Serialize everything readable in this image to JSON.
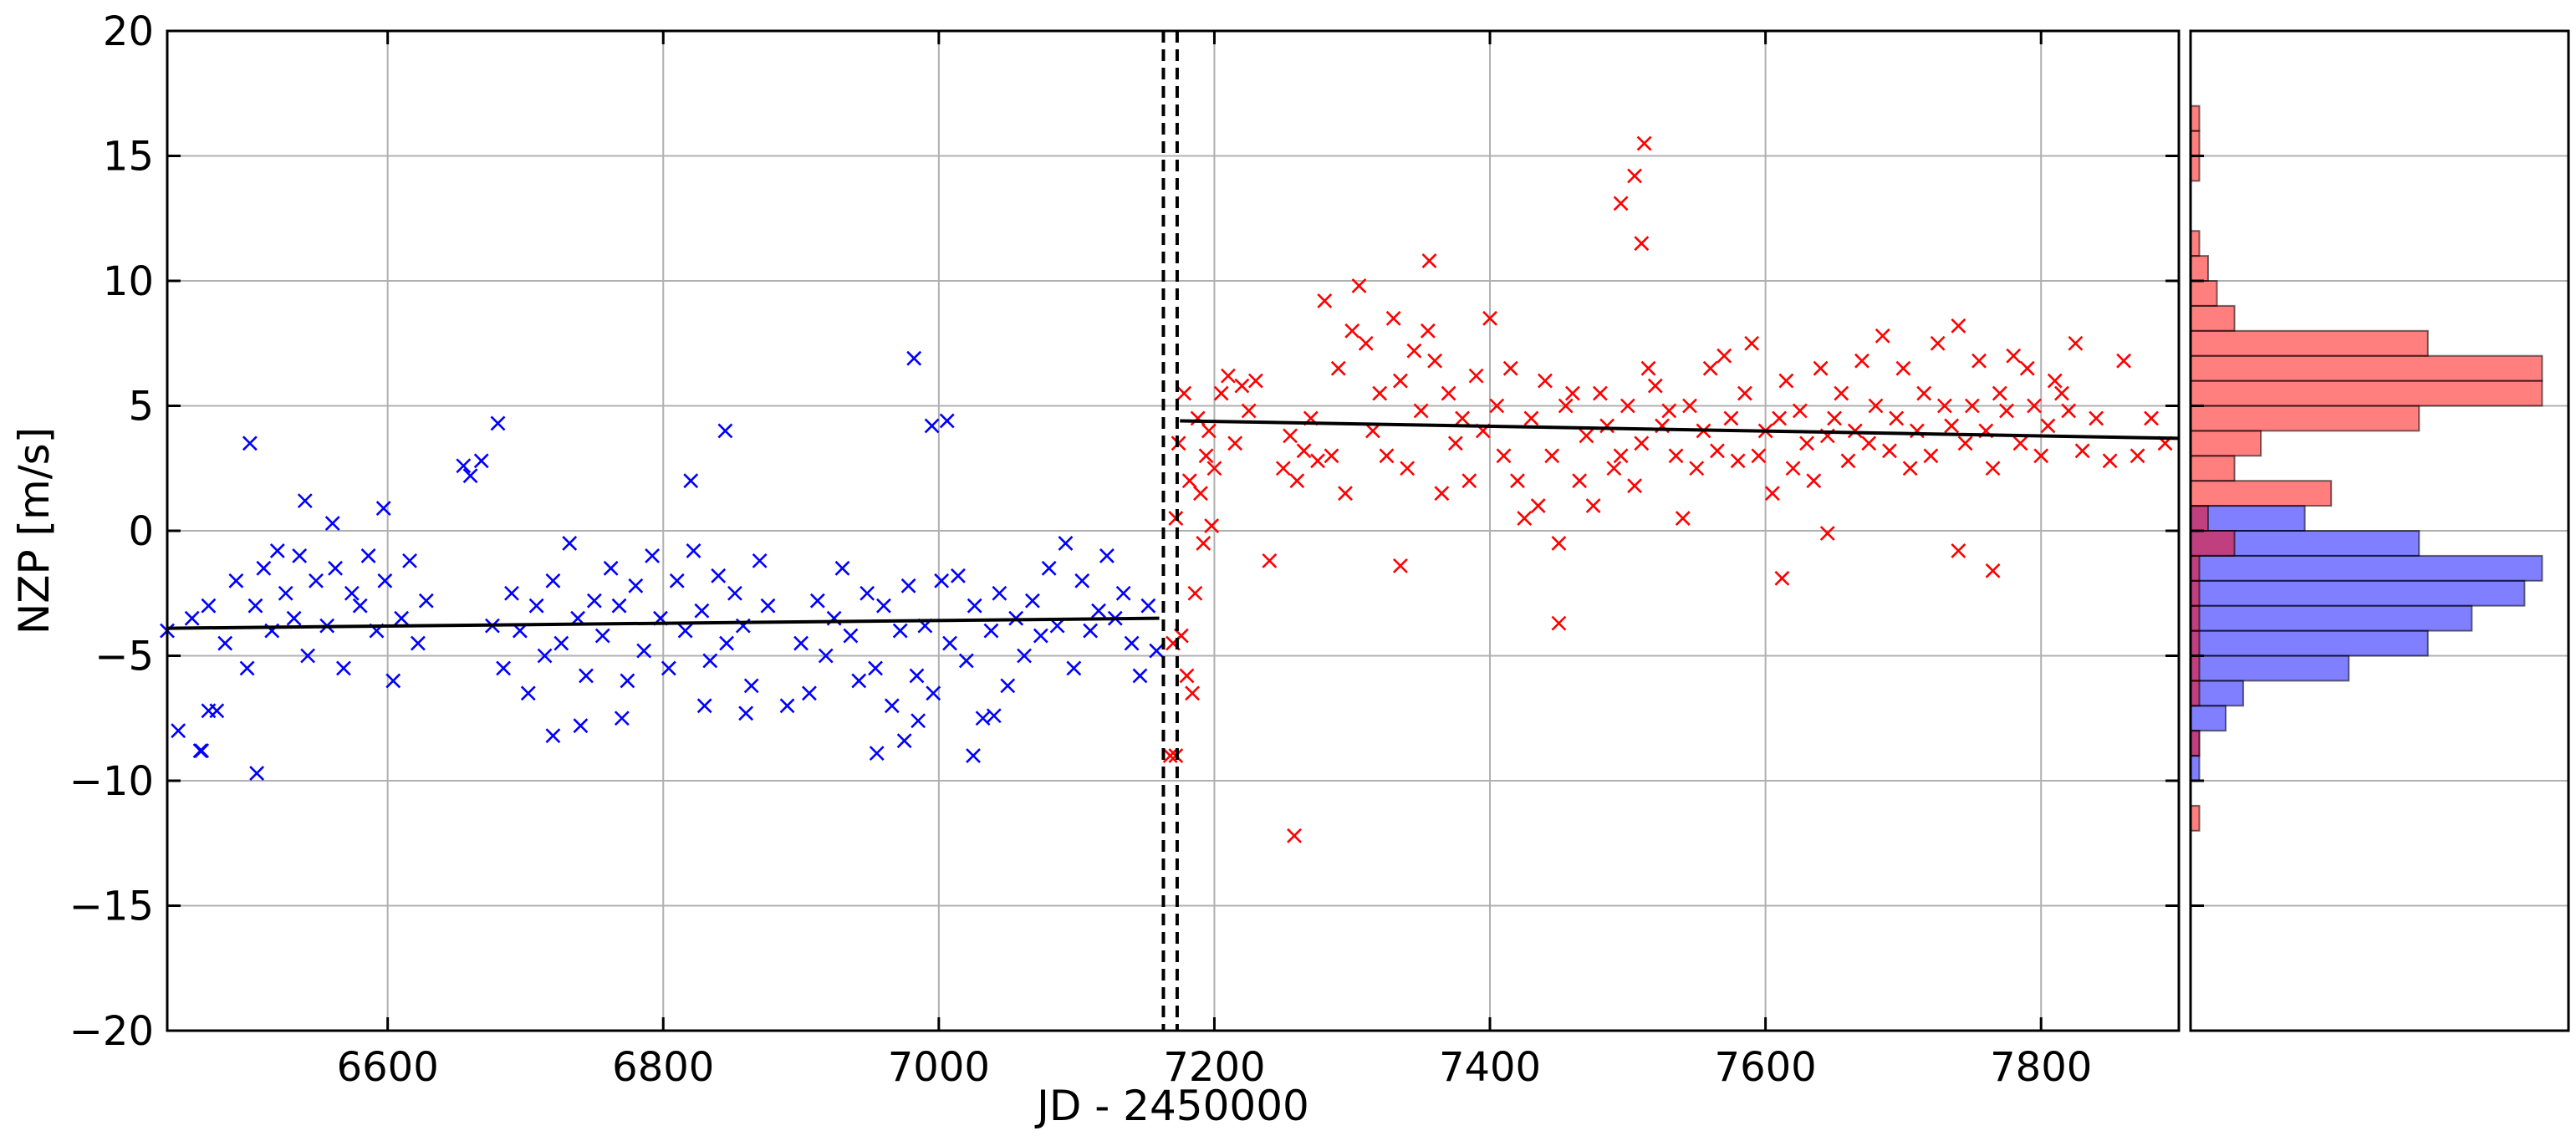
{
  "chart_data": [
    {
      "type": "scatter",
      "xlabel": "JD - 2450000",
      "ylabel": "NZP [m/s]",
      "xlim": [
        6440,
        7900
      ],
      "ylim": [
        -20,
        20
      ],
      "xticks": [
        6600,
        6800,
        7000,
        7200,
        7400,
        7600,
        7800
      ],
      "yticks": [
        -20,
        -15,
        -10,
        -5,
        0,
        5,
        10,
        15,
        20
      ],
      "xtick_labels": [
        "6600",
        "6800",
        "7000",
        "7200",
        "7400",
        "7600",
        "7800"
      ],
      "ytick_labels": [
        "−20",
        "−15",
        "−10",
        "−5",
        "0",
        "5",
        "10",
        "15",
        "20"
      ],
      "grid": true,
      "marker": "x",
      "vertical_lines": [
        7163,
        7173
      ],
      "series": [
        {
          "color": "#0000ff",
          "x": [
            6440,
            6448,
            6458,
            6464,
            6470,
            6476,
            6482,
            6490,
            6498,
            6504,
            6510,
            6516,
            6520,
            6526,
            6532,
            6536,
            6542,
            6548,
            6556,
            6562,
            6568,
            6574,
            6580,
            6586,
            6592,
            6598,
            6604,
            6610,
            6616,
            6622,
            6628,
            6500,
            6505,
            6540,
            6560,
            6655,
            6660,
            6668,
            6676,
            6684,
            6690,
            6696,
            6702,
            6708,
            6714,
            6720,
            6726,
            6732,
            6738,
            6744,
            6750,
            6756,
            6762,
            6768,
            6774,
            6780,
            6786,
            6792,
            6798,
            6804,
            6810,
            6816,
            6822,
            6828,
            6834,
            6840,
            6846,
            6852,
            6858,
            6864,
            6870,
            6876,
            6900,
            6906,
            6912,
            6918,
            6924,
            6930,
            6936,
            6942,
            6948,
            6954,
            6960,
            6966,
            6972,
            6978,
            6984,
            6990,
            6996,
            7002,
            7008,
            7014,
            7020,
            7026,
            7032,
            7038,
            7044,
            7050,
            7056,
            7062,
            7068,
            7074,
            7080,
            7086,
            7092,
            7098,
            7104,
            7110,
            7116,
            7122,
            7128,
            7134,
            7140,
            7146,
            7152,
            7158,
            6982,
            6995,
            7006,
            6680,
            6820,
            6845,
            6597,
            6465,
            6470,
            6720,
            6740,
            6770,
            6830,
            6860,
            6890,
            6955,
            6975,
            6985,
            7025,
            7040
          ],
          "y": [
            -4.0,
            -8.0,
            -3.5,
            -8.8,
            -3.0,
            -7.2,
            -4.5,
            -2.0,
            -5.5,
            -3.0,
            -1.5,
            -4.0,
            -0.8,
            -2.5,
            -3.5,
            -1.0,
            -5.0,
            -2.0,
            -3.8,
            -1.5,
            -5.5,
            -2.5,
            -3.0,
            -1.0,
            -4.0,
            -2.0,
            -6.0,
            -3.5,
            -1.2,
            -4.5,
            -2.8,
            3.5,
            -9.7,
            1.2,
            0.3,
            2.6,
            2.2,
            2.8,
            -3.8,
            -5.5,
            -2.5,
            -4.0,
            -6.5,
            -3.0,
            -5.0,
            -2.0,
            -4.5,
            -0.5,
            -3.5,
            -5.8,
            -2.8,
            -4.2,
            -1.5,
            -3.0,
            -6.0,
            -2.2,
            -4.8,
            -1.0,
            -3.5,
            -5.5,
            -2.0,
            -4.0,
            -0.8,
            -3.2,
            -5.2,
            -1.8,
            -4.5,
            -2.5,
            -3.8,
            -6.2,
            -1.2,
            -3.0,
            -4.5,
            -6.5,
            -2.8,
            -5.0,
            -3.5,
            -1.5,
            -4.2,
            -6.0,
            -2.5,
            -5.5,
            -3.0,
            -7.0,
            -4.0,
            -2.2,
            -5.8,
            -3.8,
            -6.5,
            -2.0,
            -4.5,
            -1.8,
            -5.2,
            -3.0,
            -7.5,
            -4.0,
            -2.5,
            -6.2,
            -3.5,
            -5.0,
            -2.8,
            -4.2,
            -1.5,
            -3.8,
            -0.5,
            -5.5,
            -2.0,
            -4.0,
            -3.2,
            -1.0,
            -3.5,
            -2.5,
            -4.5,
            -5.8,
            -3.0,
            -4.8,
            6.9,
            4.2,
            4.4,
            4.3,
            2.0,
            4.0,
            0.9,
            -8.8,
            -7.2,
            -8.2,
            -7.8,
            -7.5,
            -7.0,
            -7.3,
            -7.0,
            -8.9,
            -8.4,
            -7.6,
            -9.0,
            -7.4
          ]
        },
        {
          "color": "#ff0000",
          "x": [
            7168,
            7170,
            7172,
            7174,
            7176,
            7178,
            7180,
            7182,
            7184,
            7186,
            7188,
            7190,
            7192,
            7194,
            7196,
            7198,
            7200,
            7205,
            7210,
            7215,
            7220,
            7225,
            7230,
            7240,
            7250,
            7255,
            7260,
            7265,
            7270,
            7275,
            7280,
            7285,
            7290,
            7295,
            7300,
            7305,
            7310,
            7315,
            7320,
            7325,
            7330,
            7335,
            7340,
            7345,
            7350,
            7355,
            7360,
            7365,
            7370,
            7375,
            7380,
            7385,
            7390,
            7395,
            7400,
            7405,
            7410,
            7415,
            7420,
            7425,
            7430,
            7435,
            7440,
            7445,
            7450,
            7455,
            7460,
            7465,
            7470,
            7475,
            7480,
            7485,
            7490,
            7495,
            7500,
            7505,
            7510,
            7515,
            7520,
            7525,
            7530,
            7535,
            7540,
            7545,
            7550,
            7555,
            7560,
            7565,
            7570,
            7575,
            7580,
            7585,
            7590,
            7595,
            7600,
            7605,
            7610,
            7615,
            7620,
            7625,
            7630,
            7635,
            7640,
            7645,
            7650,
            7655,
            7660,
            7665,
            7670,
            7675,
            7680,
            7685,
            7690,
            7695,
            7700,
            7705,
            7710,
            7715,
            7720,
            7725,
            7730,
            7735,
            7740,
            7745,
            7750,
            7755,
            7760,
            7765,
            7770,
            7775,
            7780,
            7785,
            7790,
            7795,
            7800,
            7805,
            7810,
            7815,
            7820,
            7825,
            7830,
            7840,
            7850,
            7860,
            7870,
            7880,
            7890,
            7505,
            7510,
            7512,
            7495,
            7356,
            7258,
            7450,
            7335,
            7612,
            7645,
            7740,
            7765,
            7172
          ],
          "y": [
            -9.0,
            -4.5,
            0.5,
            3.5,
            -4.2,
            5.5,
            -5.8,
            2.0,
            -6.5,
            -2.5,
            4.5,
            1.5,
            -0.5,
            3.0,
            4.0,
            0.2,
            2.5,
            5.5,
            6.2,
            3.5,
            5.8,
            4.8,
            6.0,
            -1.2,
            2.5,
            3.8,
            2.0,
            3.2,
            4.5,
            2.8,
            9.2,
            3.0,
            6.5,
            1.5,
            8.0,
            9.8,
            7.5,
            4.0,
            5.5,
            3.0,
            8.5,
            6.0,
            2.5,
            7.2,
            4.8,
            8.0,
            6.8,
            1.5,
            5.5,
            3.5,
            4.5,
            2.0,
            6.2,
            4.0,
            8.5,
            5.0,
            3.0,
            6.5,
            2.0,
            0.5,
            4.5,
            1.0,
            6.0,
            3.0,
            -0.5,
            5.0,
            5.5,
            2.0,
            3.8,
            1.0,
            5.5,
            4.2,
            2.5,
            3.0,
            5.0,
            1.8,
            3.5,
            6.5,
            5.8,
            4.2,
            4.8,
            3.0,
            0.5,
            5.0,
            2.5,
            4.0,
            6.5,
            3.2,
            7.0,
            4.5,
            2.8,
            5.5,
            7.5,
            3.0,
            4.0,
            1.5,
            4.5,
            6.0,
            2.5,
            4.8,
            3.5,
            2.0,
            6.5,
            3.8,
            4.5,
            5.5,
            2.8,
            4.0,
            6.8,
            3.5,
            5.0,
            7.8,
            3.2,
            4.5,
            6.5,
            2.5,
            4.0,
            5.5,
            3.0,
            7.5,
            5.0,
            4.2,
            8.2,
            3.5,
            5.0,
            6.8,
            4.0,
            2.5,
            5.5,
            4.8,
            7.0,
            3.5,
            6.5,
            5.0,
            3.0,
            4.2,
            6.0,
            5.5,
            4.8,
            7.5,
            3.2,
            4.5,
            2.8,
            6.8,
            3.0,
            4.5,
            3.5,
            14.2,
            11.5,
            15.5,
            13.1,
            10.8,
            -12.2,
            -3.7,
            -1.4,
            -1.9,
            -0.1,
            -0.8,
            -1.6,
            -9.0
          ]
        }
      ],
      "trend_lines": [
        {
          "x": [
            6440,
            7160
          ],
          "y": [
            -3.9,
            -3.5
          ]
        },
        {
          "x": [
            7175,
            7900
          ],
          "y": [
            4.4,
            3.7
          ]
        }
      ]
    },
    {
      "type": "bar",
      "orientation": "horizontal",
      "bin_edges": [
        -20,
        -19,
        -18,
        -17,
        -16,
        -15,
        -14,
        -13,
        -12,
        -11,
        -10,
        -9,
        -8,
        -7,
        -6,
        -5,
        -4,
        -3,
        -2,
        -1,
        0,
        1,
        2,
        3,
        4,
        5,
        6,
        7,
        8,
        9,
        10,
        11,
        12,
        13,
        14,
        15,
        16,
        17,
        18,
        19,
        20
      ],
      "series": [
        {
          "color": "#0000ff",
          "alpha": 0.5,
          "values": [
            0,
            0,
            0,
            0,
            0,
            0,
            0,
            0,
            0,
            0,
            1,
            1,
            4,
            6,
            18,
            27,
            32,
            38,
            40,
            26,
            13,
            0,
            0,
            0,
            0,
            0,
            0,
            0,
            0,
            0,
            0,
            0,
            0,
            0,
            0,
            0,
            0,
            0,
            0,
            0
          ]
        },
        {
          "color": "#ff0000",
          "alpha": 0.5,
          "values": [
            0,
            0,
            0,
            0,
            0,
            0,
            0,
            0,
            1,
            0,
            0,
            1,
            0,
            1,
            1,
            1,
            1,
            1,
            1,
            5,
            2,
            16,
            5,
            8,
            26,
            40,
            40,
            27,
            5,
            3,
            2,
            1,
            0,
            0,
            1,
            1,
            1,
            0,
            0,
            0
          ]
        }
      ]
    }
  ]
}
